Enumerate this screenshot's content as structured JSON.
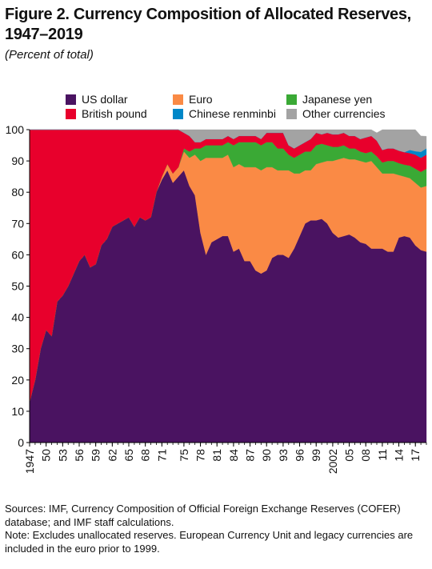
{
  "title_line1": "Figure 2. Currency Composition of Allocated Reserves,",
  "title_line2": "1947–2019",
  "subtitle": "(Percent of total)",
  "notes": {
    "sources": "Sources: IMF, Currency Composition of Official Foreign Exchange Reserves (COFER) database; and IMF staff calculations.",
    "note": "Note: Excludes unallocated reserves. European Currency Unit and legacy currencies are included in the euro prior to 1999."
  },
  "chart_data": {
    "type": "area",
    "stacked": true,
    "ylim": [
      0,
      100
    ],
    "yticks": [
      0,
      10,
      20,
      30,
      40,
      50,
      60,
      70,
      80,
      90,
      100
    ],
    "xlim": [
      1947,
      2019
    ],
    "xtick_labels": [
      "1947",
      "50",
      "53",
      "56",
      "59",
      "62",
      "65",
      "68",
      "71",
      "75",
      "78",
      "81",
      "84",
      "87",
      "90",
      "93",
      "96",
      "99",
      "2002",
      "05",
      "08",
      "11",
      "14",
      "17"
    ],
    "xtick_years": [
      1947,
      1950,
      1953,
      1956,
      1959,
      1962,
      1965,
      1968,
      1971,
      1975,
      1978,
      1981,
      1984,
      1987,
      1990,
      1993,
      1996,
      1999,
      2002,
      2005,
      2008,
      2011,
      2014,
      2017
    ],
    "legend_position": "top",
    "x": [
      1947,
      1948,
      1949,
      1950,
      1951,
      1952,
      1953,
      1954,
      1955,
      1956,
      1957,
      1958,
      1959,
      1960,
      1961,
      1962,
      1963,
      1964,
      1965,
      1966,
      1967,
      1968,
      1969,
      1970,
      1971,
      1972,
      1973,
      1974,
      1975,
      1976,
      1977,
      1978,
      1979,
      1980,
      1981,
      1982,
      1983,
      1984,
      1985,
      1986,
      1987,
      1988,
      1989,
      1990,
      1991,
      1992,
      1993,
      1994,
      1995,
      1996,
      1997,
      1998,
      1999,
      2000,
      2001,
      2002,
      2003,
      2004,
      2005,
      2006,
      2007,
      2008,
      2009,
      2010,
      2011,
      2012,
      2013,
      2014,
      2015,
      2016,
      2017,
      2018,
      2019
    ],
    "series": [
      {
        "name": "US dollar",
        "color": "#4a1361",
        "values": [
          13,
          20,
          30,
          36,
          34,
          45,
          47,
          50,
          54,
          58,
          60,
          56,
          57,
          63,
          65,
          69,
          70,
          71,
          72,
          69,
          72,
          71,
          72,
          80,
          84,
          87,
          83,
          85,
          87,
          82,
          79,
          67,
          60,
          64,
          65,
          66,
          66,
          61,
          62,
          58,
          58,
          55,
          54,
          55,
          59,
          60,
          60,
          59,
          62,
          66,
          70,
          71,
          71,
          71.5,
          70,
          67,
          65.5,
          66,
          66.5,
          65.5,
          64,
          63.5,
          62,
          62,
          62,
          61,
          61,
          65.5,
          66,
          65.5,
          63,
          61.5,
          61
        ]
      },
      {
        "name": "Euro",
        "color": "#fa8a45",
        "values": [
          0,
          0,
          0,
          0,
          0,
          0,
          0,
          0,
          0,
          0,
          0,
          0,
          0,
          0,
          0,
          0,
          0,
          0,
          0,
          0,
          0,
          0,
          0,
          0,
          1,
          2,
          3,
          3,
          6,
          9,
          13,
          23,
          31,
          27,
          26,
          25,
          26,
          27,
          27,
          30,
          30,
          33,
          33,
          33,
          29,
          27,
          27,
          28,
          24,
          20,
          17,
          16,
          18,
          18,
          20,
          23,
          25,
          25,
          24,
          25,
          26,
          26,
          28,
          26,
          24,
          25,
          25,
          20,
          19,
          19,
          20,
          20,
          21
        ]
      },
      {
        "name": "Japanese yen",
        "color": "#3aa935",
        "values": [
          0,
          0,
          0,
          0,
          0,
          0,
          0,
          0,
          0,
          0,
          0,
          0,
          0,
          0,
          0,
          0,
          0,
          0,
          0,
          0,
          0,
          0,
          0,
          0,
          0,
          0,
          0,
          0,
          1,
          2,
          2,
          4,
          4,
          4,
          4,
          4,
          4,
          7,
          7,
          8,
          8,
          8,
          8,
          8,
          8,
          7,
          7,
          5,
          5,
          6,
          6,
          6,
          6,
          6,
          5,
          4.5,
          4,
          4,
          3.5,
          3.5,
          3,
          3,
          3,
          3.5,
          3.5,
          4,
          4,
          3.8,
          3.8,
          4,
          4.5,
          5,
          5.5
        ]
      },
      {
        "name": "British pound",
        "color": "#e8002c",
        "values": [
          87,
          80,
          70,
          64,
          66,
          55,
          53,
          50,
          46,
          42,
          40,
          44,
          43,
          37,
          35,
          31,
          30,
          29,
          28,
          31,
          28,
          29,
          28,
          20,
          15,
          11,
          14,
          12,
          5,
          5,
          2,
          2,
          2,
          2,
          2,
          2,
          2,
          2,
          2,
          2,
          2,
          2,
          2,
          3,
          3,
          5,
          5,
          3,
          3,
          3,
          3,
          4,
          4,
          3,
          4,
          4,
          4,
          4,
          4,
          4,
          4,
          5,
          5,
          5,
          4,
          4,
          4,
          4,
          4,
          4,
          4.5,
          4.5,
          4.5
        ]
      },
      {
        "name": "Chinese renminbi",
        "color": "#0087c8",
        "values": [
          0,
          0,
          0,
          0,
          0,
          0,
          0,
          0,
          0,
          0,
          0,
          0,
          0,
          0,
          0,
          0,
          0,
          0,
          0,
          0,
          0,
          0,
          0,
          0,
          0,
          0,
          0,
          0,
          0,
          0,
          0,
          0,
          0,
          0,
          0,
          0,
          0,
          0,
          0,
          0,
          0,
          0,
          0,
          0,
          0,
          0,
          0,
          0,
          0,
          0,
          0,
          0,
          0,
          0,
          0,
          0,
          0,
          0,
          0,
          0,
          0,
          0,
          0,
          0,
          0,
          0,
          0,
          0,
          0,
          1,
          1.1,
          1.9,
          2
        ]
      },
      {
        "name": "Other currencies",
        "color": "#a3a3a3",
        "values": [
          0,
          0,
          0,
          0,
          0,
          0,
          0,
          0,
          0,
          0,
          0,
          0,
          0,
          0,
          0,
          0,
          0,
          0,
          0,
          0,
          0,
          0,
          0,
          0,
          0,
          0,
          0,
          0,
          1,
          2,
          4,
          4,
          3,
          3,
          3,
          3,
          2,
          3,
          2,
          2,
          2,
          2,
          3,
          1,
          1,
          1,
          1,
          5,
          6,
          5,
          4,
          3,
          1,
          1.5,
          1,
          1.5,
          1.5,
          1,
          2,
          2,
          3,
          2.5,
          2,
          2.5,
          6.5,
          6,
          6,
          6.7,
          7.2,
          6.5,
          6.9,
          5.1,
          3.9
        ]
      }
    ]
  }
}
